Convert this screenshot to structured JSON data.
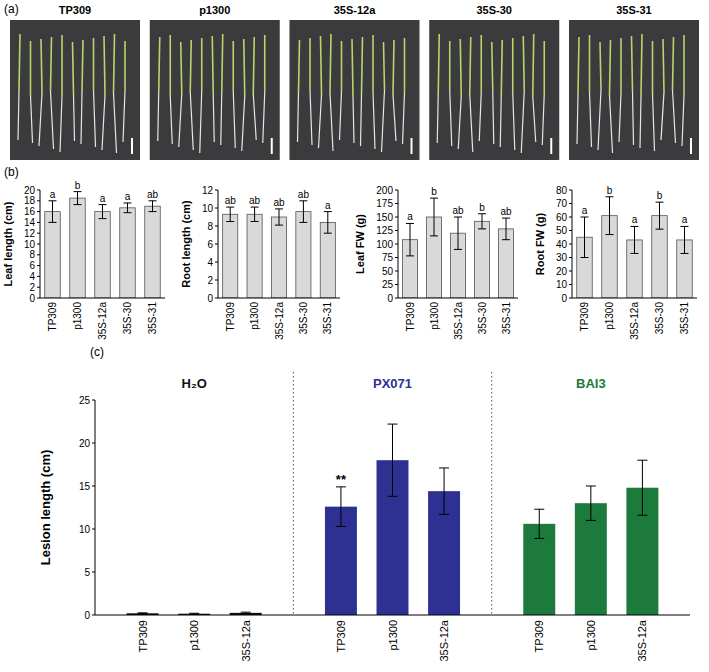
{
  "panel_labels": [
    "(a)",
    "(b)",
    "(c)"
  ],
  "photo_labels": [
    "TP309",
    "p1300",
    "35S-12a",
    "35S-30",
    "35S-31"
  ],
  "chart_data": [
    {
      "type": "bar",
      "ylabel": "Leaf length (cm)",
      "categories": [
        "TP309",
        "p1300",
        "35S-12a",
        "35S-30",
        "35S-31"
      ],
      "values": [
        16,
        18.5,
        16,
        16.7,
        17
      ],
      "errors": [
        2,
        1.2,
        1.3,
        0.9,
        1
      ],
      "annotations": [
        "a",
        "b",
        "a",
        "a",
        "ab"
      ],
      "color": "#d9d9d9",
      "ylim": [
        0,
        20
      ],
      "yticks": [
        0,
        2,
        4,
        6,
        8,
        10,
        12,
        14,
        16,
        18,
        20
      ]
    },
    {
      "type": "bar",
      "ylabel": "Root length (cm)",
      "categories": [
        "TP309",
        "p1300",
        "35S-12a",
        "35S-30",
        "35S-31"
      ],
      "values": [
        9.3,
        9.3,
        9.0,
        9.6,
        8.4
      ],
      "errors": [
        0.8,
        0.8,
        0.9,
        1.2,
        1.2
      ],
      "annotations": [
        "ab",
        "ab",
        "ab",
        "ab",
        "a"
      ],
      "color": "#d9d9d9",
      "ylim": [
        0,
        12
      ],
      "yticks": [
        0,
        2,
        4,
        6,
        8,
        10,
        12
      ]
    },
    {
      "type": "bar",
      "ylabel": "Leaf FW (g)",
      "categories": [
        "TP309",
        "p1300",
        "35S-12a",
        "35S-30",
        "35S-31"
      ],
      "values": [
        108,
        150,
        120,
        142,
        128
      ],
      "errors": [
        30,
        35,
        30,
        14,
        20
      ],
      "annotations": [
        "a",
        "b",
        "ab",
        "b",
        "ab"
      ],
      "color": "#d9d9d9",
      "ylim": [
        0,
        200
      ],
      "yticks": [
        0,
        25,
        50,
        75,
        100,
        125,
        150,
        175,
        200
      ]
    },
    {
      "type": "bar",
      "ylabel": "Root FW (g)",
      "categories": [
        "TP309",
        "p1300",
        "35S-12a",
        "35S-30",
        "35S-31"
      ],
      "values": [
        45,
        61,
        43,
        61,
        43
      ],
      "errors": [
        15,
        14,
        10,
        10,
        10
      ],
      "annotations": [
        "a",
        "b",
        "a",
        "b",
        "a"
      ],
      "color": "#d9d9d9",
      "ylim": [
        0,
        80
      ],
      "yticks": [
        0,
        10,
        20,
        30,
        40,
        50,
        60,
        70,
        80
      ]
    },
    {
      "type": "bar",
      "ylabel": "Lesion length (cm)",
      "categories": [
        "TP309",
        "p1300",
        "35S-12a"
      ],
      "series": [
        {
          "name": "H₂O",
          "color": "#111111",
          "values": [
            0.2,
            0.15,
            0.25
          ],
          "errors": [
            0.05,
            0.05,
            0.08
          ],
          "annotations": [
            null,
            null,
            null
          ]
        },
        {
          "name": "PX071",
          "color": "#2e3192",
          "values": [
            12.6,
            18,
            14.4
          ],
          "errors": [
            2.3,
            4.2,
            2.7
          ],
          "annotations": [
            "**",
            null,
            null
          ]
        },
        {
          "name": "BAI3",
          "color": "#1b7a3c",
          "values": [
            10.6,
            13,
            14.8
          ],
          "errors": [
            1.7,
            2,
            3.2
          ],
          "annotations": [
            null,
            null,
            null
          ]
        }
      ],
      "ylim": [
        0,
        25
      ],
      "yticks": [
        0,
        5,
        10,
        15,
        20,
        25
      ]
    }
  ]
}
